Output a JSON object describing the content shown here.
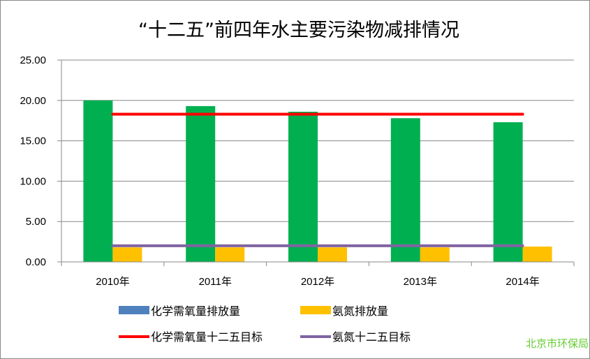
{
  "chart_data": {
    "type": "bar",
    "title": "“十二五”前四年水主要污染物减排情况",
    "xlabel": "",
    "ylabel": "",
    "ylim": [
      0,
      25
    ],
    "yticks": [
      "0.00",
      "5.00",
      "10.00",
      "15.00",
      "20.00",
      "25.00"
    ],
    "ytick_values": [
      0,
      5,
      10,
      15,
      20,
      25
    ],
    "grid": true,
    "categories": [
      "2010年",
      "2011年",
      "2012年",
      "2013年",
      "2014年"
    ],
    "series": [
      {
        "name": "化学需氧量排放量",
        "type": "bar",
        "color": "#00B050",
        "legend_color": "#4F81BD",
        "values": [
          20.0,
          19.3,
          18.6,
          17.8,
          17.3
        ]
      },
      {
        "name": "氨氮排放量",
        "type": "bar",
        "color": "#FFC000",
        "values": [
          1.8,
          1.8,
          1.8,
          1.8,
          1.9
        ]
      },
      {
        "name": "化学需氧量十二五目标",
        "type": "line",
        "color": "#FF0000",
        "values": [
          18.3,
          18.3,
          18.3,
          18.3,
          18.3
        ]
      },
      {
        "name": "氨氮十二五目标",
        "type": "line",
        "color": "#8064A2",
        "values": [
          2.0,
          2.0,
          2.0,
          2.0,
          2.0
        ]
      }
    ],
    "legend_position": "bottom"
  },
  "watermark": "北京市环保局"
}
